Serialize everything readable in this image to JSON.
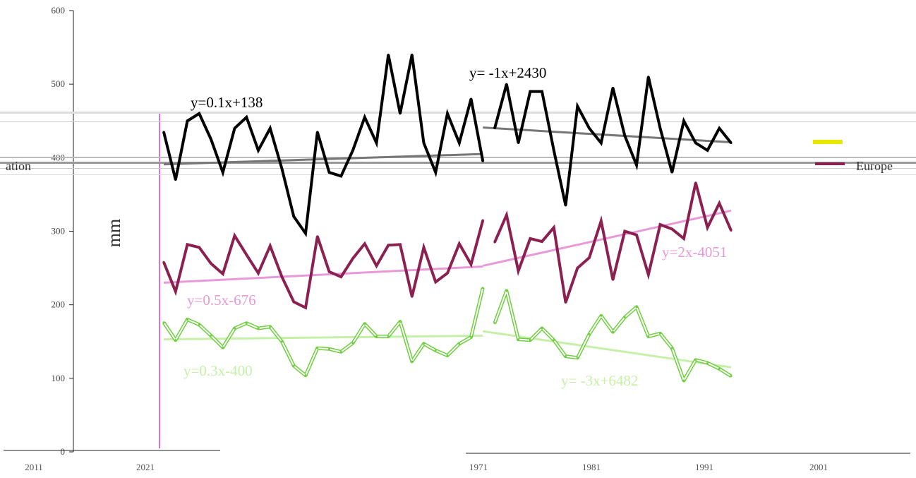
{
  "chart_data": {
    "type": "line",
    "title": "",
    "xlabel": "",
    "ylabel": "mm",
    "ylim": [
      0,
      600
    ],
    "y_ticks": [
      0,
      100,
      200,
      300,
      400,
      500,
      600
    ],
    "x_tick_labels": [
      "2011",
      "2021",
      "1971",
      "1981",
      "1991",
      "2001"
    ],
    "grid": false,
    "legend_position": "right",
    "legend": [
      {
        "label": "ation",
        "color": "#555555"
      },
      {
        "label": "",
        "color": "#e8e800"
      },
      {
        "label": "Europe",
        "color": "#8b2150"
      }
    ],
    "x": [
      1,
      2,
      3,
      4,
      5,
      6,
      7,
      8,
      9,
      10,
      11,
      12,
      13,
      14,
      15,
      16,
      17,
      18,
      19,
      20,
      21,
      22,
      23,
      24,
      25,
      26,
      27,
      28,
      29,
      30,
      31,
      32,
      33,
      34,
      35,
      36,
      37,
      38,
      39,
      40,
      41,
      42,
      43,
      44,
      45,
      46,
      47,
      48,
      49
    ],
    "series": [
      {
        "color": "#000000",
        "values": [
          435,
          370,
          450,
          460,
          425,
          380,
          440,
          455,
          410,
          440,
          385,
          320,
          297,
          435,
          380,
          375,
          410,
          455,
          420,
          540,
          460,
          540,
          420,
          380,
          460,
          420,
          480,
          395,
          440,
          500,
          420,
          490,
          490,
          410,
          335,
          470,
          440,
          420,
          495,
          430,
          390,
          510,
          440,
          380,
          450,
          420,
          410,
          440,
          420
        ]
      },
      {
        "color": "#8b2150",
        "values": [
          258,
          218,
          282,
          278,
          256,
          242,
          294,
          268,
          243,
          280,
          238,
          204,
          196,
          293,
          245,
          238,
          263,
          283,
          253,
          281,
          282,
          211,
          278,
          231,
          243,
          283,
          255,
          315,
          285,
          322,
          246,
          290,
          286,
          305,
          203,
          250,
          264,
          314,
          234,
          300,
          295,
          241,
          309,
          303,
          290,
          366,
          305,
          338,
          301
        ]
      },
      {
        "color": "#b8f0a0",
        "values": [
          176,
          152,
          180,
          173,
          158,
          142,
          168,
          175,
          168,
          170,
          150,
          117,
          104,
          141,
          140,
          136,
          148,
          174,
          157,
          157,
          177,
          123,
          147,
          138,
          131,
          147,
          156,
          223,
          175,
          219,
          153,
          152,
          168,
          152,
          130,
          128,
          160,
          185,
          163,
          183,
          197,
          157,
          161,
          141,
          97,
          125,
          121,
          113,
          103
        ]
      }
    ],
    "trendlines": [
      {
        "label": "y=0.1x+138",
        "color": "#777777",
        "from": [
          1,
          391
        ],
        "to": [
          28,
          405
        ]
      },
      {
        "label": "y= -1x+2430",
        "color": "#777777",
        "from": [
          28,
          441
        ],
        "to": [
          49,
          421
        ]
      },
      {
        "label": "y=0.5x-676",
        "color": "#e899d8",
        "from": [
          1,
          230
        ],
        "to": [
          28,
          252
        ]
      },
      {
        "label": "y=2x-4051",
        "color": "#e899d8",
        "from": [
          28,
          253
        ],
        "to": [
          49,
          328
        ]
      },
      {
        "label": "y=0.3x-400",
        "color": "#c6f0a8",
        "from": [
          1,
          153
        ],
        "to": [
          28,
          158
        ]
      },
      {
        "label": "y= -3x+6482",
        "color": "#c6f0a8",
        "from": [
          28,
          164
        ],
        "to": [
          49,
          115
        ]
      }
    ]
  }
}
